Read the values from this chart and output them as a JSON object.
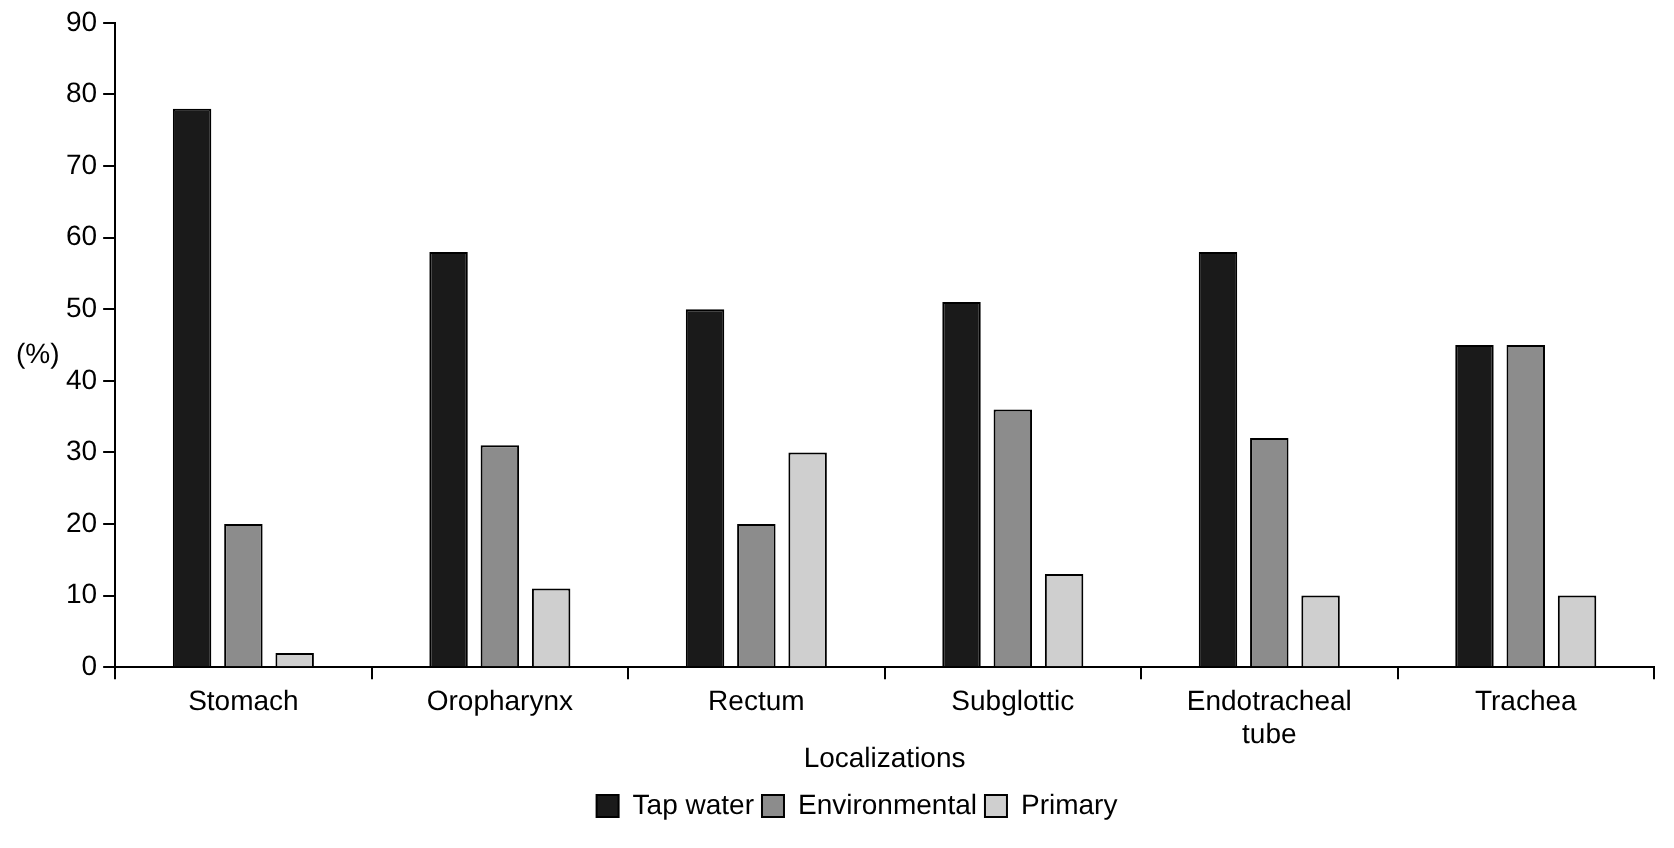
{
  "chart_data": {
    "type": "bar",
    "xlabel": "Localizations",
    "ylabel": "(%)",
    "categories": [
      "Stomach",
      "Oropharynx",
      "Rectum",
      "Subglottic",
      "Endotracheal tube",
      "Trachea"
    ],
    "series": [
      {
        "name": "Tap water",
        "color": "#1a1a1a",
        "values": [
          78,
          58,
          50,
          51,
          58,
          45
        ]
      },
      {
        "name": "Environmental",
        "color": "#8c8c8c",
        "values": [
          20,
          31,
          20,
          36,
          32,
          45
        ]
      },
      {
        "name": "Primary",
        "color": "#cfcfcf",
        "values": [
          2,
          11,
          30,
          13,
          10,
          10
        ]
      }
    ],
    "ylim": [
      0,
      90
    ],
    "yticks": [
      0,
      10,
      20,
      30,
      40,
      50,
      60,
      70,
      80,
      90
    ],
    "grid": false,
    "legend": "bottom"
  }
}
